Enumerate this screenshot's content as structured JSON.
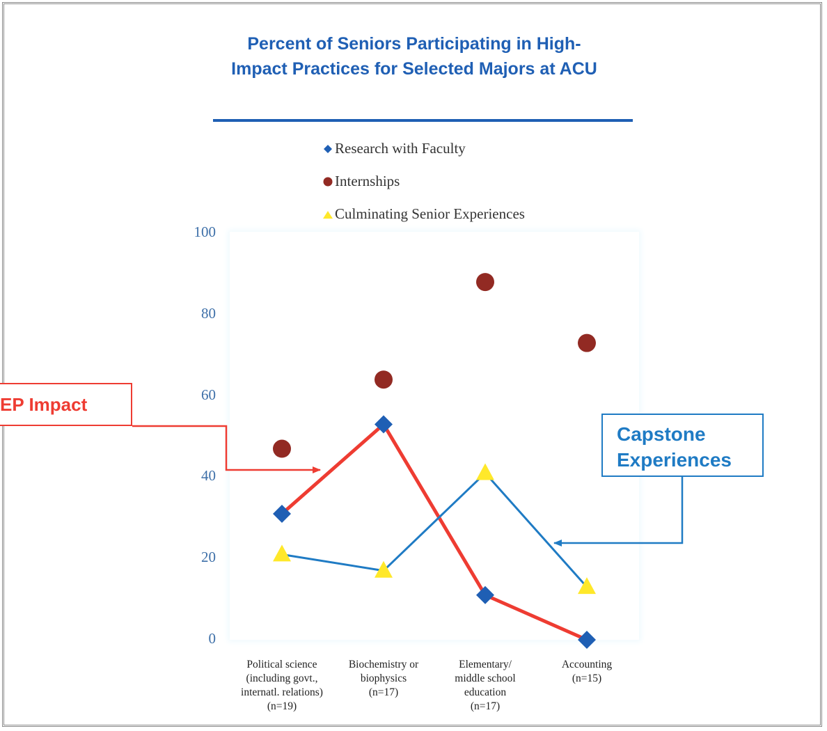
{
  "chart_data": {
    "type": "line",
    "title": "Percent of Seniors Participating in High-Impact Practices for Selected Majors at ACU",
    "categories": [
      "Political science\n(including govt.,\ninternatl. relations)\n(n=19)",
      "Biochemistry or\nbiophysics\n(n=17)",
      "Elementary/\nmiddle school\neducation\n(n=17)",
      "Accounting\n(n=15)"
    ],
    "ylim": [
      0,
      100
    ],
    "yticks": [
      "0",
      "20",
      "40",
      "60",
      "80",
      "100"
    ],
    "grid": false,
    "legend_position": "top-center",
    "series": [
      {
        "name": "Research with Faculty",
        "marker": "diamond",
        "color": "#1f5fb4",
        "values": [
          31,
          53,
          11,
          0
        ]
      },
      {
        "name": "Internships",
        "marker": "circle",
        "color": "#922a23",
        "values": [
          47,
          64,
          88,
          73
        ]
      },
      {
        "name": "Culminating Senior Experiences",
        "marker": "triangle",
        "color": "#ffe82a",
        "values": [
          21,
          17,
          41,
          13
        ]
      }
    ],
    "highlight_lines": [
      {
        "label": "EP Impact",
        "series": "Research with Faculty",
        "color": "#ee3c32"
      },
      {
        "label": "Capstone Experiences",
        "series": "Culminating Senior Experiences",
        "color": "#1f7bc4"
      }
    ],
    "annotations": {
      "ep_impact": "EP Impact",
      "capstone": "Capstone Experiences"
    }
  }
}
